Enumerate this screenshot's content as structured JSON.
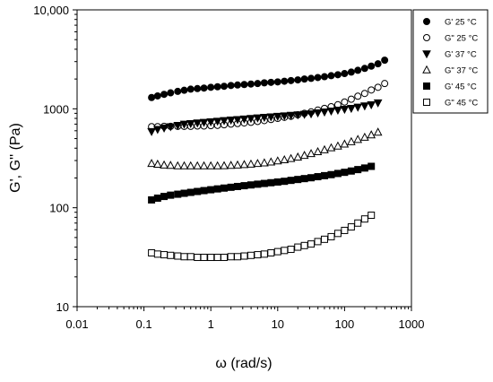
{
  "chart_data": {
    "type": "scatter",
    "x_scale": "log",
    "y_scale": "log",
    "xlim": [
      0.01,
      1000
    ],
    "ylim": [
      10,
      10000
    ],
    "xlabel": "ω (rad/s)",
    "ylabel": "G', G'' (Pa)",
    "x_tick_labels": [
      "0.01",
      "0.1",
      "1",
      "10",
      "100",
      "1000"
    ],
    "y_tick_labels": [
      "10",
      "100",
      "1000",
      "10,000"
    ],
    "grid": false,
    "legend_position": "top-right",
    "series": [
      {
        "name": "G' 25 °C",
        "marker": "circle",
        "filled": true,
        "x": [
          0.13,
          0.16,
          0.2,
          0.25,
          0.32,
          0.4,
          0.5,
          0.63,
          0.79,
          1,
          1.26,
          1.58,
          2,
          2.51,
          3.16,
          3.98,
          5.01,
          6.31,
          7.94,
          10,
          12.6,
          15.8,
          20,
          25.1,
          31.6,
          39.8,
          50.1,
          63.1,
          79.4,
          100,
          126,
          158,
          200,
          251,
          316,
          398
        ],
        "y": [
          1300,
          1350,
          1400,
          1450,
          1500,
          1540,
          1580,
          1600,
          1620,
          1650,
          1670,
          1690,
          1720,
          1740,
          1760,
          1780,
          1800,
          1830,
          1850,
          1870,
          1900,
          1930,
          1960,
          2000,
          2030,
          2070,
          2110,
          2160,
          2210,
          2270,
          2350,
          2450,
          2560,
          2700,
          2850,
          3100
        ]
      },
      {
        "name": "G\" 25 °C",
        "marker": "circle",
        "filled": false,
        "x": [
          0.13,
          0.16,
          0.2,
          0.25,
          0.32,
          0.4,
          0.5,
          0.63,
          0.79,
          1,
          1.26,
          1.58,
          2,
          2.51,
          3.16,
          3.98,
          5.01,
          6.31,
          7.94,
          10,
          12.6,
          15.8,
          20,
          25.1,
          31.6,
          39.8,
          50.1,
          63.1,
          79.4,
          100,
          126,
          158,
          200,
          251,
          316,
          398
        ],
        "y": [
          660,
          660,
          665,
          665,
          665,
          665,
          665,
          670,
          670,
          675,
          680,
          690,
          700,
          710,
          720,
          730,
          745,
          760,
          780,
          800,
          820,
          840,
          870,
          900,
          930,
          970,
          1010,
          1050,
          1100,
          1170,
          1250,
          1340,
          1430,
          1550,
          1650,
          1800
        ]
      },
      {
        "name": "G' 37 °C",
        "marker": "triangle-down",
        "filled": true,
        "x": [
          0.13,
          0.16,
          0.2,
          0.25,
          0.32,
          0.4,
          0.5,
          0.63,
          0.79,
          1,
          1.26,
          1.58,
          2,
          2.51,
          3.16,
          3.98,
          5.01,
          6.31,
          7.94,
          10,
          12.6,
          15.8,
          20,
          25.1,
          31.6,
          39.8,
          50.1,
          63.1,
          79.4,
          100,
          126,
          158,
          200,
          251,
          316
        ],
        "y": [
          590,
          620,
          640,
          660,
          680,
          700,
          710,
          720,
          730,
          740,
          750,
          760,
          770,
          780,
          790,
          800,
          810,
          820,
          830,
          840,
          850,
          860,
          870,
          880,
          890,
          910,
          930,
          950,
          970,
          990,
          1010,
          1040,
          1070,
          1100,
          1150
        ]
      },
      {
        "name": "G\" 37 °C",
        "marker": "triangle-up",
        "filled": false,
        "x": [
          0.13,
          0.16,
          0.2,
          0.25,
          0.32,
          0.4,
          0.5,
          0.63,
          0.79,
          1,
          1.26,
          1.58,
          2,
          2.51,
          3.16,
          3.98,
          5.01,
          6.31,
          7.94,
          10,
          12.6,
          15.8,
          20,
          25.1,
          31.6,
          39.8,
          50.1,
          63.1,
          79.4,
          100,
          126,
          158,
          200,
          251,
          316
        ],
        "y": [
          280,
          275,
          270,
          268,
          265,
          265,
          265,
          265,
          265,
          265,
          265,
          266,
          268,
          270,
          273,
          276,
          280,
          284,
          290,
          297,
          305,
          314,
          325,
          338,
          352,
          368,
          385,
          403,
          420,
          440,
          465,
          490,
          515,
          545,
          580
        ]
      },
      {
        "name": "G' 45 °C",
        "marker": "square",
        "filled": true,
        "x": [
          0.13,
          0.16,
          0.2,
          0.25,
          0.32,
          0.4,
          0.5,
          0.63,
          0.79,
          1,
          1.26,
          1.58,
          2,
          2.51,
          3.16,
          3.98,
          5.01,
          6.31,
          7.94,
          10,
          12.6,
          15.8,
          20,
          25.1,
          31.6,
          39.8,
          50.1,
          63.1,
          79.4,
          100,
          126,
          158,
          200,
          251
        ],
        "y": [
          120,
          125,
          130,
          134,
          137,
          140,
          143,
          146,
          149,
          152,
          155,
          158,
          161,
          164,
          167,
          170,
          173,
          176,
          179,
          182,
          185,
          189,
          193,
          197,
          201,
          206,
          211,
          216,
          222,
          228,
          235,
          243,
          252,
          262
        ]
      },
      {
        "name": "G\" 45 °C",
        "marker": "square",
        "filled": false,
        "x": [
          0.13,
          0.16,
          0.2,
          0.25,
          0.32,
          0.4,
          0.5,
          0.63,
          0.79,
          1,
          1.26,
          1.58,
          2,
          2.51,
          3.16,
          3.98,
          5.01,
          6.31,
          7.94,
          10,
          12.6,
          15.8,
          20,
          25.1,
          31.6,
          39.8,
          50.1,
          63.1,
          79.4,
          100,
          126,
          158,
          200,
          251
        ],
        "y": [
          35,
          34,
          33.5,
          33,
          32.5,
          32,
          32,
          31.5,
          31.5,
          31.5,
          31.5,
          31.5,
          32,
          32,
          32.5,
          33,
          33.5,
          34,
          35,
          36,
          37,
          38,
          40,
          41.5,
          43,
          45.5,
          48,
          51,
          55,
          59,
          64,
          70,
          77,
          84
        ]
      }
    ]
  }
}
